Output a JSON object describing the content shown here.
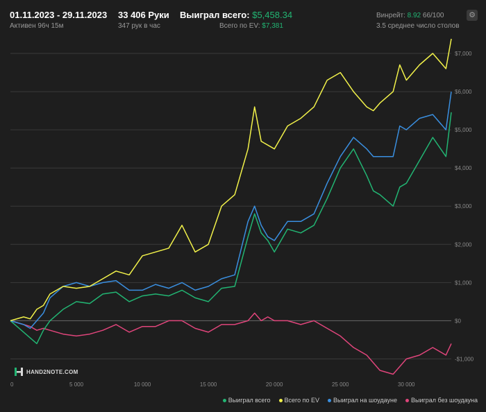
{
  "header": {
    "date_range": "01.11.2023 - 29.11.2023",
    "active": "Активен 96ч 15м",
    "hands": "33 406 Руки",
    "hands_per_hour": "347 рук в час",
    "won_label": "Выиграл всего:",
    "won_value": "$5,458.34",
    "ev_label": "Всего по EV:",
    "ev_value": "$7,381",
    "winrate_label": "Винрейт:",
    "winrate_value": "8.92",
    "winrate_total": "66/100",
    "tables": "3.5 среднее число столов"
  },
  "logo": {
    "text": "HAND2NOTE.COM"
  },
  "colors": {
    "background": "#1e1e1e",
    "won": "#22b573",
    "ev": "#f2f24a",
    "showdown": "#3a8fe0",
    "non_showdown": "#e0457b",
    "grid": "#3a3a3a",
    "axis_text": "#8a8a8a"
  },
  "chart_data": {
    "type": "line",
    "x_ticks": [
      0,
      5000,
      10000,
      15000,
      20000,
      25000,
      30000
    ],
    "x_tick_labels": [
      "0",
      "5 000",
      "10 000",
      "15 000",
      "20 000",
      "25 000",
      "30 000"
    ],
    "xlim": [
      0,
      33406
    ],
    "y_ticks": [
      -1000,
      0,
      1000,
      2000,
      3000,
      4000,
      5000,
      6000,
      7000
    ],
    "y_tick_labels": [
      "-$1,000",
      "$0",
      "$1,000",
      "$2,000",
      "$3,000",
      "$4,000",
      "$5,000",
      "$6,000",
      "$7,000"
    ],
    "ylim": [
      -1500,
      7400
    ],
    "grid": true,
    "legend_position": "bottom-right",
    "x": [
      0,
      1000,
      1500,
      2000,
      2500,
      3000,
      4000,
      5000,
      6000,
      7000,
      8000,
      9000,
      10000,
      11000,
      12000,
      13000,
      14000,
      15000,
      16000,
      17000,
      18000,
      18500,
      19000,
      19500,
      20000,
      21000,
      22000,
      23000,
      24000,
      25000,
      26000,
      27000,
      27500,
      28000,
      29000,
      29500,
      30000,
      31000,
      32000,
      33000,
      33406
    ],
    "series": [
      {
        "name": "Выиграл всего",
        "values": [
          0,
          -300,
          -450,
          -600,
          -250,
          0,
          300,
          500,
          450,
          700,
          750,
          500,
          650,
          700,
          650,
          800,
          600,
          500,
          850,
          900,
          2200,
          2800,
          2300,
          2100,
          1800,
          2400,
          2300,
          2500,
          3200,
          4000,
          4500,
          3800,
          3400,
          3300,
          3000,
          3500,
          3600,
          4200,
          4800,
          4300,
          5458
        ]
      },
      {
        "name": "Всего по EV",
        "values": [
          0,
          100,
          50,
          300,
          400,
          700,
          900,
          850,
          900,
          1100,
          1300,
          1200,
          1700,
          1800,
          1900,
          2500,
          1800,
          2000,
          3000,
          3300,
          4500,
          5600,
          4700,
          4600,
          4500,
          5100,
          5300,
          5600,
          6300,
          6500,
          6000,
          5600,
          5500,
          5700,
          6000,
          6700,
          6300,
          6700,
          7000,
          6600,
          7381
        ]
      },
      {
        "name": "Выиграл на шоудауне",
        "values": [
          0,
          -100,
          -200,
          0,
          200,
          600,
          900,
          1000,
          900,
          1000,
          1050,
          800,
          800,
          950,
          850,
          1000,
          800,
          900,
          1100,
          1200,
          2600,
          3000,
          2500,
          2200,
          2100,
          2600,
          2600,
          2800,
          3600,
          4300,
          4800,
          4500,
          4300,
          4300,
          4300,
          5100,
          5000,
          5300,
          5400,
          5000,
          6000
        ]
      },
      {
        "name": "Выиграл без шоудауна",
        "values": [
          0,
          -100,
          -150,
          -250,
          -200,
          -250,
          -350,
          -400,
          -350,
          -250,
          -100,
          -300,
          -150,
          -150,
          0,
          0,
          -200,
          -300,
          -100,
          -100,
          0,
          200,
          0,
          100,
          0,
          0,
          -100,
          0,
          -200,
          -400,
          -700,
          -900,
          -1100,
          -1300,
          -1400,
          -1200,
          -1000,
          -900,
          -700,
          -900,
          -600
        ]
      }
    ]
  },
  "legend": [
    {
      "label": "Выиграл всего",
      "color": "#22b573"
    },
    {
      "label": "Всего по EV",
      "color": "#f2f24a"
    },
    {
      "label": "Выиграл на шоудауне",
      "color": "#3a8fe0"
    },
    {
      "label": "Выиграл без шоудауна",
      "color": "#e0457b"
    }
  ]
}
